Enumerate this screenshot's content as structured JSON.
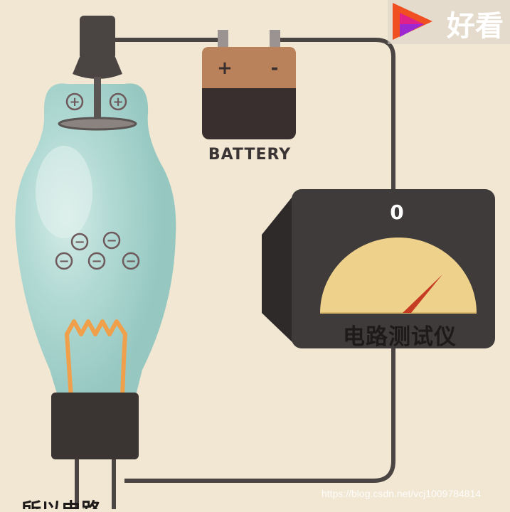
{
  "battery": {
    "label": "BATTERY",
    "plus_symbol": "+",
    "minus_symbol": "-"
  },
  "tube": {
    "charge_positive_symbol": "+",
    "charge_negative_symbol": "−",
    "positive_charge_count": 2,
    "negative_charge_count": 5
  },
  "meter": {
    "reading": "0",
    "caption": "电路测试仪"
  },
  "overlay": {
    "logo_text": "好看",
    "logo_icon": "play-triangle-icon",
    "watermark": "https://blog.csdn.net/vcj1009784814",
    "bottom_caption": "所以电路"
  },
  "colors": {
    "background": "#f1e7d3",
    "wire": "#4a4543",
    "tube_glass": "#a9d4cf",
    "battery_top": "#b9825a",
    "battery_body": "#3a2f2f",
    "meter_box": "#3f3b3b",
    "meter_dial": "#eed18a",
    "needle": "#c53b24",
    "filament": "#f0a04b"
  }
}
